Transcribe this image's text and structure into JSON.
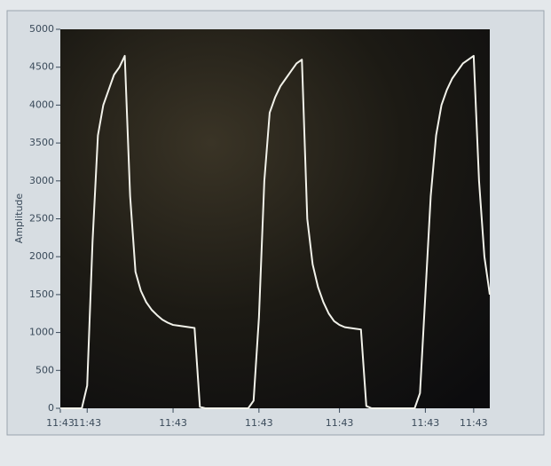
{
  "chart_data": {
    "type": "line",
    "y_label": "Amplitude",
    "color": "#f2f2ea",
    "categories": [
      "11:43",
      null,
      null,
      null,
      null,
      "11:43",
      null,
      null,
      null,
      null,
      null,
      null,
      null,
      null,
      null,
      null,
      null,
      null,
      null,
      null,
      null,
      "11:43",
      null,
      null,
      null,
      null,
      null,
      null,
      null,
      null,
      null,
      null,
      null,
      null,
      null,
      null,
      null,
      "11:43",
      null,
      null,
      null,
      null,
      null,
      null,
      null,
      null,
      null,
      null,
      null,
      null,
      null,
      null,
      "11:43",
      null,
      null,
      null,
      null,
      null,
      null,
      null,
      null,
      null,
      null,
      null,
      null,
      null,
      null,
      null,
      "11:43",
      null,
      null,
      null,
      null,
      null,
      null,
      null,
      null,
      "11:43",
      null,
      null,
      null
    ],
    "values": [
      0,
      0,
      0,
      0,
      0,
      300,
      2200,
      3600,
      4000,
      4200,
      4400,
      4500,
      4650,
      2800,
      1800,
      1550,
      1400,
      1300,
      1230,
      1170,
      1130,
      1100,
      1090,
      1080,
      1070,
      1060,
      20,
      0,
      0,
      0,
      0,
      0,
      0,
      0,
      0,
      0,
      100,
      1200,
      3000,
      3900,
      4100,
      4250,
      4350,
      4450,
      4550,
      4600,
      2500,
      1900,
      1600,
      1400,
      1250,
      1150,
      1100,
      1070,
      1060,
      1050,
      1040,
      30,
      0,
      0,
      0,
      0,
      0,
      0,
      0,
      0,
      0,
      200,
      1500,
      2800,
      3600,
      4000,
      4200,
      4350,
      4450,
      4550,
      4600,
      4650,
      3000,
      2000,
      1500
    ],
    "ylim": [
      0,
      5000
    ],
    "yticks": [
      0,
      500,
      1000,
      1500,
      2000,
      2500,
      3000,
      3500,
      4000,
      4500,
      5000
    ]
  }
}
